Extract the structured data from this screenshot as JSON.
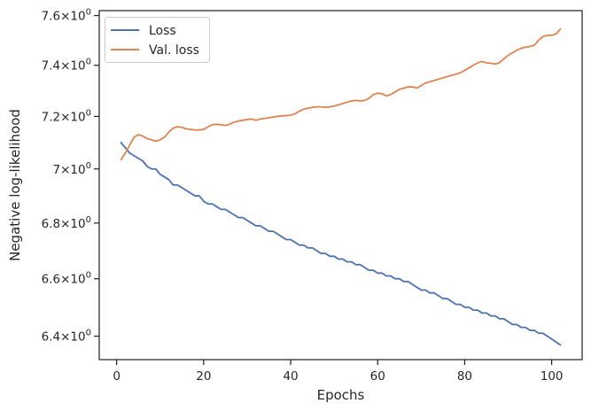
{
  "chart_data": {
    "type": "line",
    "xlabel": "Epochs",
    "ylabel": "Negative log-likelihood",
    "yscale": "log",
    "xlim": [
      -4,
      107
    ],
    "ylim": [
      6.32,
      7.62
    ],
    "grid": false,
    "legend_position": "top-left",
    "x_ticks": [
      0,
      20,
      40,
      60,
      80,
      100
    ],
    "x_tick_labels": [
      "0",
      "20",
      "40",
      "60",
      "80",
      "100"
    ],
    "y_ticks": [
      6.4,
      6.6,
      6.8,
      7.0,
      7.2,
      7.4,
      7.6
    ],
    "y_tick_labels": [
      {
        "base": "6.4×10",
        "exp": "0"
      },
      {
        "base": "6.6×10",
        "exp": "0"
      },
      {
        "base": "6.8×10",
        "exp": "0"
      },
      {
        "base": "7×10",
        "exp": "0"
      },
      {
        "base": "7.2×10",
        "exp": "0"
      },
      {
        "base": "7.4×10",
        "exp": "0"
      },
      {
        "base": "7.6×10",
        "exp": "0"
      }
    ],
    "series": [
      {
        "name": "Loss",
        "color": "#4c72b0",
        "x": [
          1,
          2,
          3,
          4,
          5,
          6,
          7,
          8,
          9,
          10,
          11,
          12,
          13,
          14,
          15,
          16,
          17,
          18,
          19,
          20,
          21,
          22,
          23,
          24,
          25,
          26,
          27,
          28,
          29,
          30,
          31,
          32,
          33,
          34,
          35,
          36,
          37,
          38,
          39,
          40,
          41,
          42,
          43,
          44,
          45,
          46,
          47,
          48,
          49,
          50,
          51,
          52,
          53,
          54,
          55,
          56,
          57,
          58,
          59,
          60,
          61,
          62,
          63,
          64,
          65,
          66,
          67,
          68,
          69,
          70,
          71,
          72,
          73,
          74,
          75,
          76,
          77,
          78,
          79,
          80,
          81,
          82,
          83,
          84,
          85,
          86,
          87,
          88,
          89,
          90,
          91,
          92,
          93,
          94,
          95,
          96,
          97,
          98,
          99,
          100,
          101,
          102
        ],
        "values": [
          7.1,
          7.08,
          7.06,
          7.05,
          7.04,
          7.03,
          7.01,
          7.0,
          7.0,
          6.98,
          6.97,
          6.96,
          6.94,
          6.94,
          6.93,
          6.92,
          6.91,
          6.9,
          6.9,
          6.88,
          6.87,
          6.87,
          6.86,
          6.85,
          6.85,
          6.84,
          6.83,
          6.82,
          6.82,
          6.81,
          6.8,
          6.79,
          6.79,
          6.78,
          6.77,
          6.77,
          6.76,
          6.75,
          6.74,
          6.74,
          6.73,
          6.72,
          6.72,
          6.71,
          6.71,
          6.7,
          6.69,
          6.69,
          6.68,
          6.68,
          6.67,
          6.67,
          6.66,
          6.66,
          6.65,
          6.65,
          6.64,
          6.63,
          6.63,
          6.62,
          6.62,
          6.61,
          6.61,
          6.6,
          6.6,
          6.59,
          6.59,
          6.58,
          6.57,
          6.56,
          6.56,
          6.55,
          6.55,
          6.54,
          6.53,
          6.53,
          6.52,
          6.51,
          6.51,
          6.5,
          6.5,
          6.49,
          6.49,
          6.48,
          6.48,
          6.47,
          6.47,
          6.46,
          6.46,
          6.45,
          6.44,
          6.44,
          6.43,
          6.43,
          6.42,
          6.42,
          6.41,
          6.41,
          6.4,
          6.39,
          6.38,
          6.37
        ]
      },
      {
        "name": "Val. loss",
        "color": "#dd8452",
        "x": [
          1,
          2,
          3,
          4,
          5,
          6,
          7,
          8,
          9,
          10,
          11,
          12,
          13,
          14,
          15,
          16,
          17,
          18,
          19,
          20,
          21,
          22,
          23,
          24,
          25,
          26,
          27,
          28,
          29,
          30,
          31,
          32,
          33,
          34,
          35,
          36,
          37,
          38,
          39,
          40,
          41,
          42,
          43,
          44,
          45,
          46,
          47,
          48,
          49,
          50,
          51,
          52,
          53,
          54,
          55,
          56,
          57,
          58,
          59,
          60,
          61,
          62,
          63,
          64,
          65,
          66,
          67,
          68,
          69,
          70,
          71,
          72,
          73,
          74,
          75,
          76,
          77,
          78,
          79,
          80,
          81,
          82,
          83,
          84,
          85,
          86,
          87,
          88,
          89,
          90,
          91,
          92,
          93,
          94,
          95,
          96,
          97,
          98,
          99,
          100,
          101,
          102
        ],
        "values": [
          7.035,
          7.06,
          7.09,
          7.12,
          7.13,
          7.125,
          7.115,
          7.11,
          7.105,
          7.11,
          7.12,
          7.14,
          7.155,
          7.16,
          7.158,
          7.152,
          7.15,
          7.148,
          7.148,
          7.15,
          7.16,
          7.168,
          7.17,
          7.168,
          7.165,
          7.17,
          7.178,
          7.182,
          7.185,
          7.188,
          7.19,
          7.185,
          7.19,
          7.192,
          7.195,
          7.198,
          7.2,
          7.202,
          7.203,
          7.205,
          7.21,
          7.22,
          7.228,
          7.232,
          7.235,
          7.237,
          7.237,
          7.235,
          7.237,
          7.24,
          7.245,
          7.25,
          7.255,
          7.26,
          7.262,
          7.26,
          7.262,
          7.27,
          7.285,
          7.29,
          7.288,
          7.28,
          7.285,
          7.295,
          7.305,
          7.31,
          7.315,
          7.315,
          7.31,
          7.32,
          7.33,
          7.335,
          7.34,
          7.345,
          7.35,
          7.355,
          7.36,
          7.365,
          7.37,
          7.38,
          7.39,
          7.4,
          7.41,
          7.415,
          7.41,
          7.408,
          7.405,
          7.41,
          7.425,
          7.44,
          7.45,
          7.46,
          7.468,
          7.472,
          7.475,
          7.48,
          7.5,
          7.515,
          7.52,
          7.52,
          7.525,
          7.545
        ]
      }
    ]
  }
}
